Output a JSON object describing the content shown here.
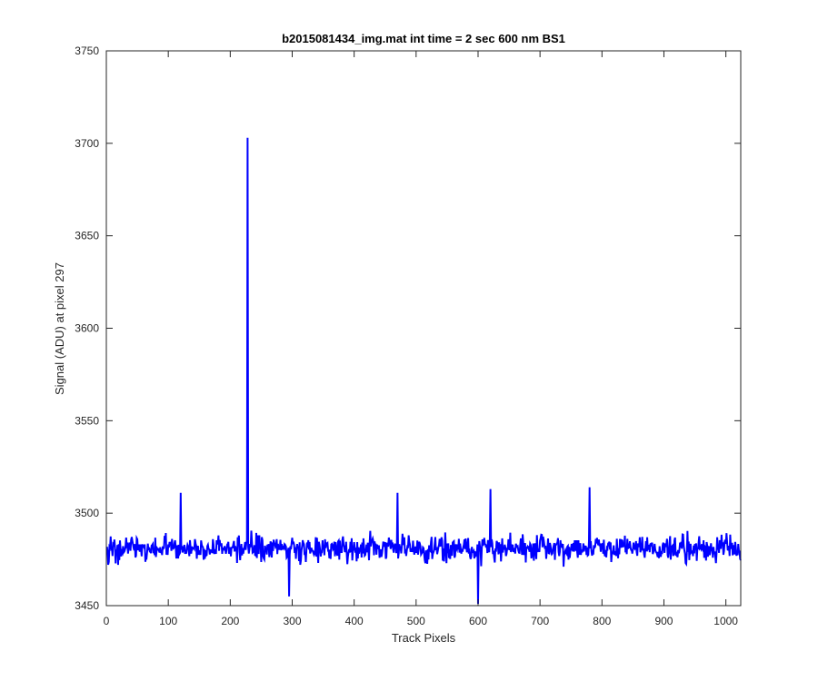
{
  "chart_data": {
    "type": "line",
    "title": "b2015081434_img.mat int time = 2 sec  600 nm BS1",
    "xlabel": "Track Pixels",
    "ylabel": "Signal (ADU) at pixel 297",
    "xlim": [
      0,
      1024
    ],
    "ylim": [
      3450,
      3750
    ],
    "xticks": [
      0,
      100,
      200,
      300,
      400,
      500,
      600,
      700,
      800,
      900,
      1000
    ],
    "yticks": [
      3450,
      3500,
      3550,
      3600,
      3650,
      3700,
      3750
    ],
    "grid": false,
    "legend": "none",
    "series": [
      {
        "color": "#0000ff",
        "x_start": 1,
        "x_step": 1,
        "baseline": 3481,
        "noise_amplitude": 14,
        "length": 1024,
        "notable_points": [
          {
            "x": 228,
            "y": 3703
          },
          {
            "x": 120,
            "y": 3511
          },
          {
            "x": 295,
            "y": 3455
          },
          {
            "x": 600,
            "y": 3451
          },
          {
            "x": 620,
            "y": 3513
          },
          {
            "x": 780,
            "y": 3514
          },
          {
            "x": 470,
            "y": 3511
          }
        ]
      }
    ]
  }
}
